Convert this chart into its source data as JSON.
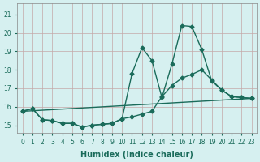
{
  "xlabel": "Humidex (Indice chaleur)",
  "xlim": [
    -0.5,
    23.5
  ],
  "ylim": [
    14.6,
    21.6
  ],
  "xtick_vals": [
    0,
    1,
    2,
    3,
    4,
    5,
    6,
    7,
    8,
    9,
    10,
    11,
    12,
    13,
    14,
    15,
    16,
    17,
    18,
    19,
    20,
    21,
    22,
    23
  ],
  "ytick_vals": [
    15,
    16,
    17,
    18,
    19,
    20,
    21
  ],
  "bg_color": "#d6f0f0",
  "grid_color": "#c4a8a8",
  "line_color": "#1a6b5a",
  "line1_x": [
    0,
    1,
    2,
    3,
    4,
    5,
    6,
    7,
    8,
    9,
    10,
    11,
    12,
    13,
    14,
    15,
    16,
    17,
    18,
    19,
    20,
    21,
    22,
    23
  ],
  "line1_y": [
    15.75,
    15.9,
    15.3,
    15.25,
    15.1,
    15.1,
    14.9,
    15.0,
    15.05,
    15.1,
    15.35,
    15.45,
    15.6,
    15.75,
    16.55,
    17.15,
    17.55,
    17.75,
    18.0,
    17.45,
    16.9,
    16.55,
    16.5,
    16.45
  ],
  "line2_x": [
    0,
    1,
    2,
    3,
    4,
    5,
    6,
    7,
    8,
    9,
    10,
    11,
    12,
    13,
    14,
    15,
    16,
    17,
    18,
    19,
    20,
    21,
    22,
    23
  ],
  "line2_y": [
    15.75,
    15.9,
    15.3,
    15.25,
    15.1,
    15.1,
    14.9,
    15.0,
    15.05,
    15.1,
    15.35,
    17.8,
    19.2,
    18.5,
    16.5,
    18.3,
    20.4,
    20.35,
    19.1,
    17.4,
    16.9,
    16.55,
    16.5,
    16.45
  ],
  "line3_x": [
    0,
    23
  ],
  "line3_y": [
    15.75,
    16.45
  ],
  "marker_style": "D",
  "marker_size": 2.5,
  "linewidth": 1.0,
  "font_size": 7
}
